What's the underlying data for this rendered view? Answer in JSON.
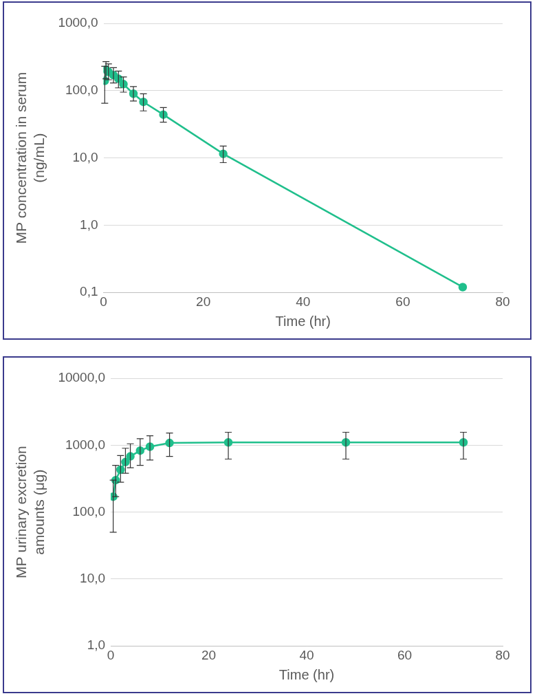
{
  "chart_data": [
    {
      "type": "line",
      "x_label": "Time (hr)",
      "y_label": [
        "MP concentration in serum",
        "(ng/mL)"
      ],
      "log": "y",
      "grid": true,
      "xlim": [
        0,
        80
      ],
      "xticks": [
        0,
        20,
        40,
        60,
        80
      ],
      "ylim": [
        0.1,
        1000
      ],
      "yticks": [
        {
          "value": 0.1,
          "label": "0,1"
        },
        {
          "value": 1,
          "label": "1,0"
        },
        {
          "value": 10,
          "label": "10,0"
        },
        {
          "value": 100,
          "label": "100,0"
        },
        {
          "value": 1000,
          "label": "1000,0"
        }
      ],
      "x": [
        0.25,
        0.5,
        1,
        2,
        3,
        4,
        6,
        8,
        12,
        24,
        72
      ],
      "series": [
        {
          "color": "#20bf8c",
          "marker": "circle",
          "line_style": "solid",
          "values": [
            140,
            205,
            190,
            170,
            150,
            125,
            90,
            68,
            44,
            11.5,
            0.12
          ],
          "error_low": [
            65,
            150,
            145,
            130,
            110,
            95,
            70,
            50,
            34,
            8.5,
            null
          ],
          "error_high": [
            230,
            270,
            250,
            220,
            195,
            160,
            115,
            90,
            56,
            15,
            null
          ]
        }
      ]
    },
    {
      "type": "line",
      "x_label": "Time (hr)",
      "y_label": [
        "MP urinary excretion",
        "amounts (μg)"
      ],
      "log": "y",
      "grid": true,
      "xlim": [
        0,
        80
      ],
      "xticks": [
        0,
        20,
        40,
        60,
        80
      ],
      "ylim": [
        1,
        10000
      ],
      "yticks": [
        {
          "value": 1,
          "label": "1,0"
        },
        {
          "value": 10,
          "label": "10,0"
        },
        {
          "value": 100,
          "label": "100,0"
        },
        {
          "value": 1000,
          "label": "1000,0"
        },
        {
          "value": 10000,
          "label": "10000,0"
        }
      ],
      "x": [
        0.5,
        1,
        2,
        3,
        4,
        6,
        8,
        12,
        24,
        48,
        72
      ],
      "series": [
        {
          "color": "#20bf8c",
          "marker": "circle",
          "line_style": "solid",
          "values": [
            170,
            300,
            430,
            560,
            680,
            830,
            950,
            1080,
            1100,
            1100,
            1100
          ],
          "error_low": [
            50,
            170,
            280,
            380,
            460,
            500,
            600,
            680,
            620,
            620,
            620
          ],
          "error_high": [
            300,
            500,
            700,
            900,
            1050,
            1250,
            1380,
            1520,
            1560,
            1560,
            1560
          ]
        }
      ]
    }
  ]
}
